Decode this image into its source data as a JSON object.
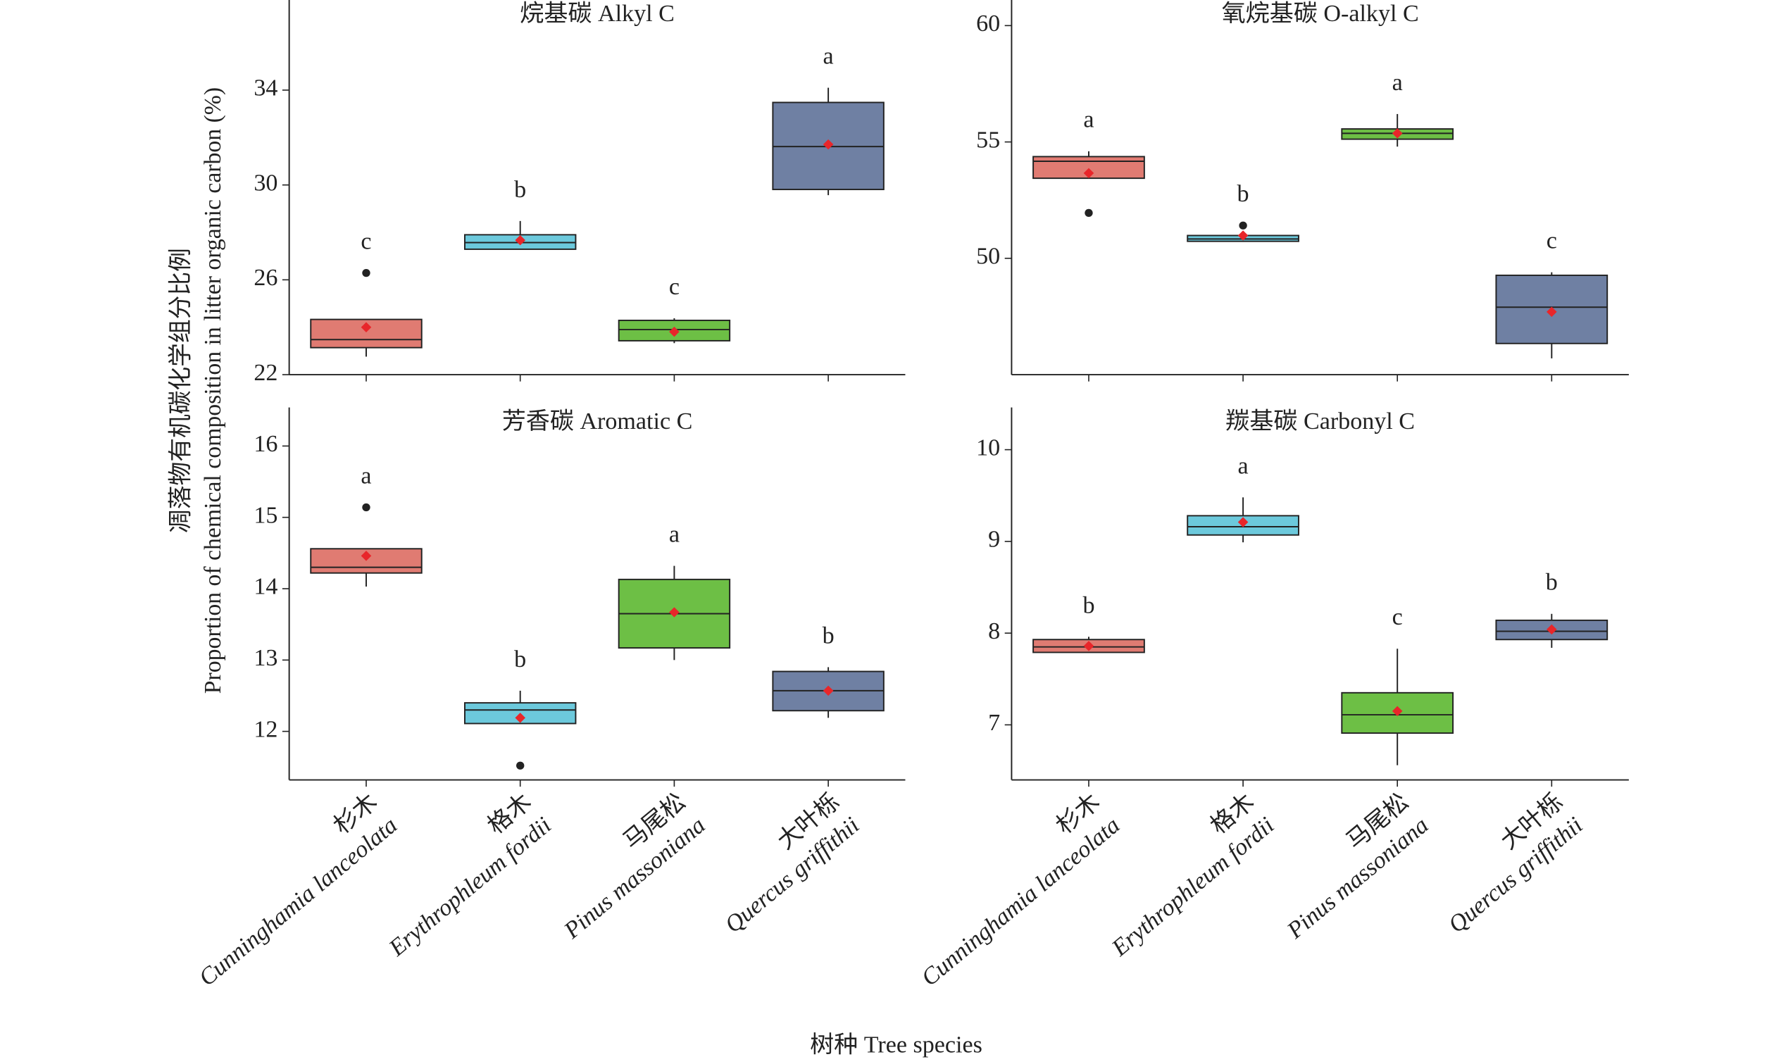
{
  "figure": {
    "y_label": [
      "凋落物有机碳化学组分比例",
      "Proportion of chemical composition in litter organic carbon (%)"
    ],
    "x_label": "树种 Tree species",
    "categories": [
      "杉木",
      "格木",
      "马尾松",
      "大叶栎"
    ],
    "species": [
      "Cunninghamia lanceolata",
      "Erythrophleum fordii",
      "Pinus massoniana",
      "Quercus griffithii"
    ],
    "colors": [
      "#e07b72",
      "#6cc9dc",
      "#6dbf45",
      "#6f80a3"
    ],
    "mean_color": "#e8262a"
  },
  "chart_data": [
    {
      "type": "box",
      "title": "烷基碳 Alkyl C",
      "ylim": [
        22,
        37.8
      ],
      "yticks": [
        22,
        26,
        30,
        34
      ],
      "boxes": [
        {
          "min": 22.76,
          "q1": 23.14,
          "median": 23.48,
          "q3": 24.33,
          "max": 24.33,
          "mean": 24.0,
          "outliers": [
            26.29
          ],
          "letter": "c"
        },
        {
          "min": 27.29,
          "q1": 27.29,
          "median": 27.57,
          "q3": 27.9,
          "max": 28.48,
          "mean": 27.67,
          "outliers": [],
          "letter": "b"
        },
        {
          "min": 23.33,
          "q1": 23.43,
          "median": 23.9,
          "q3": 24.29,
          "max": 24.38,
          "mean": 23.81,
          "outliers": [],
          "letter": "c"
        },
        {
          "min": 29.57,
          "q1": 29.81,
          "median": 31.62,
          "q3": 33.48,
          "max": 34.1,
          "mean": 31.71,
          "outliers": [],
          "letter": "a"
        }
      ]
    },
    {
      "type": "box",
      "title": "氧烷基碳 O-alkyl C",
      "ylim": [
        45,
        61.1
      ],
      "yticks": [
        50,
        55,
        60
      ],
      "boxes": [
        {
          "min": 53.44,
          "q1": 53.44,
          "median": 54.17,
          "q3": 54.37,
          "max": 54.6,
          "mean": 53.66,
          "outliers": [
            51.95
          ],
          "letter": "a"
        },
        {
          "min": 50.73,
          "q1": 50.73,
          "median": 50.83,
          "q3": 50.98,
          "max": 50.98,
          "mean": 50.98,
          "outliers": [
            51.41
          ],
          "letter": "b"
        },
        {
          "min": 54.8,
          "q1": 55.12,
          "median": 55.37,
          "q3": 55.56,
          "max": 56.2,
          "mean": 55.37,
          "outliers": [],
          "letter": "a"
        },
        {
          "min": 45.7,
          "q1": 46.34,
          "median": 47.9,
          "q3": 49.27,
          "max": 49.4,
          "mean": 47.7,
          "outliers": [],
          "letter": "c"
        }
      ]
    },
    {
      "type": "box",
      "title": "芳香碳 Aromatic C",
      "ylim": [
        11.32,
        16.54
      ],
      "yticks": [
        12,
        13,
        14,
        15,
        16
      ],
      "boxes": [
        {
          "min": 14.03,
          "q1": 14.22,
          "median": 14.3,
          "q3": 14.56,
          "max": 14.56,
          "mean": 14.46,
          "outliers": [
            15.14
          ],
          "letter": "a"
        },
        {
          "min": 12.11,
          "q1": 12.11,
          "median": 12.3,
          "q3": 12.4,
          "max": 12.57,
          "mean": 12.19,
          "outliers": [
            11.52
          ],
          "letter": "b"
        },
        {
          "min": 13.0,
          "q1": 13.17,
          "median": 13.65,
          "q3": 14.13,
          "max": 14.32,
          "mean": 13.67,
          "outliers": [],
          "letter": "a"
        },
        {
          "min": 12.19,
          "q1": 12.29,
          "median": 12.57,
          "q3": 12.84,
          "max": 12.9,
          "mean": 12.57,
          "outliers": [],
          "letter": "b"
        }
      ]
    },
    {
      "type": "box",
      "title": "羰基碳 Carbonyl C",
      "ylim": [
        6.4,
        10.46
      ],
      "yticks": [
        7,
        8,
        9,
        10
      ],
      "boxes": [
        {
          "min": 7.79,
          "q1": 7.79,
          "median": 7.85,
          "q3": 7.93,
          "max": 7.96,
          "mean": 7.86,
          "outliers": [],
          "letter": "b"
        },
        {
          "min": 8.99,
          "q1": 9.07,
          "median": 9.16,
          "q3": 9.28,
          "max": 9.48,
          "mean": 9.21,
          "outliers": [],
          "letter": "a"
        },
        {
          "min": 6.56,
          "q1": 6.91,
          "median": 7.11,
          "q3": 7.35,
          "max": 7.83,
          "mean": 7.15,
          "outliers": [],
          "letter": "c"
        },
        {
          "min": 7.84,
          "q1": 7.93,
          "median": 8.02,
          "q3": 8.14,
          "max": 8.21,
          "mean": 8.04,
          "outliers": [],
          "letter": "b"
        }
      ]
    }
  ]
}
